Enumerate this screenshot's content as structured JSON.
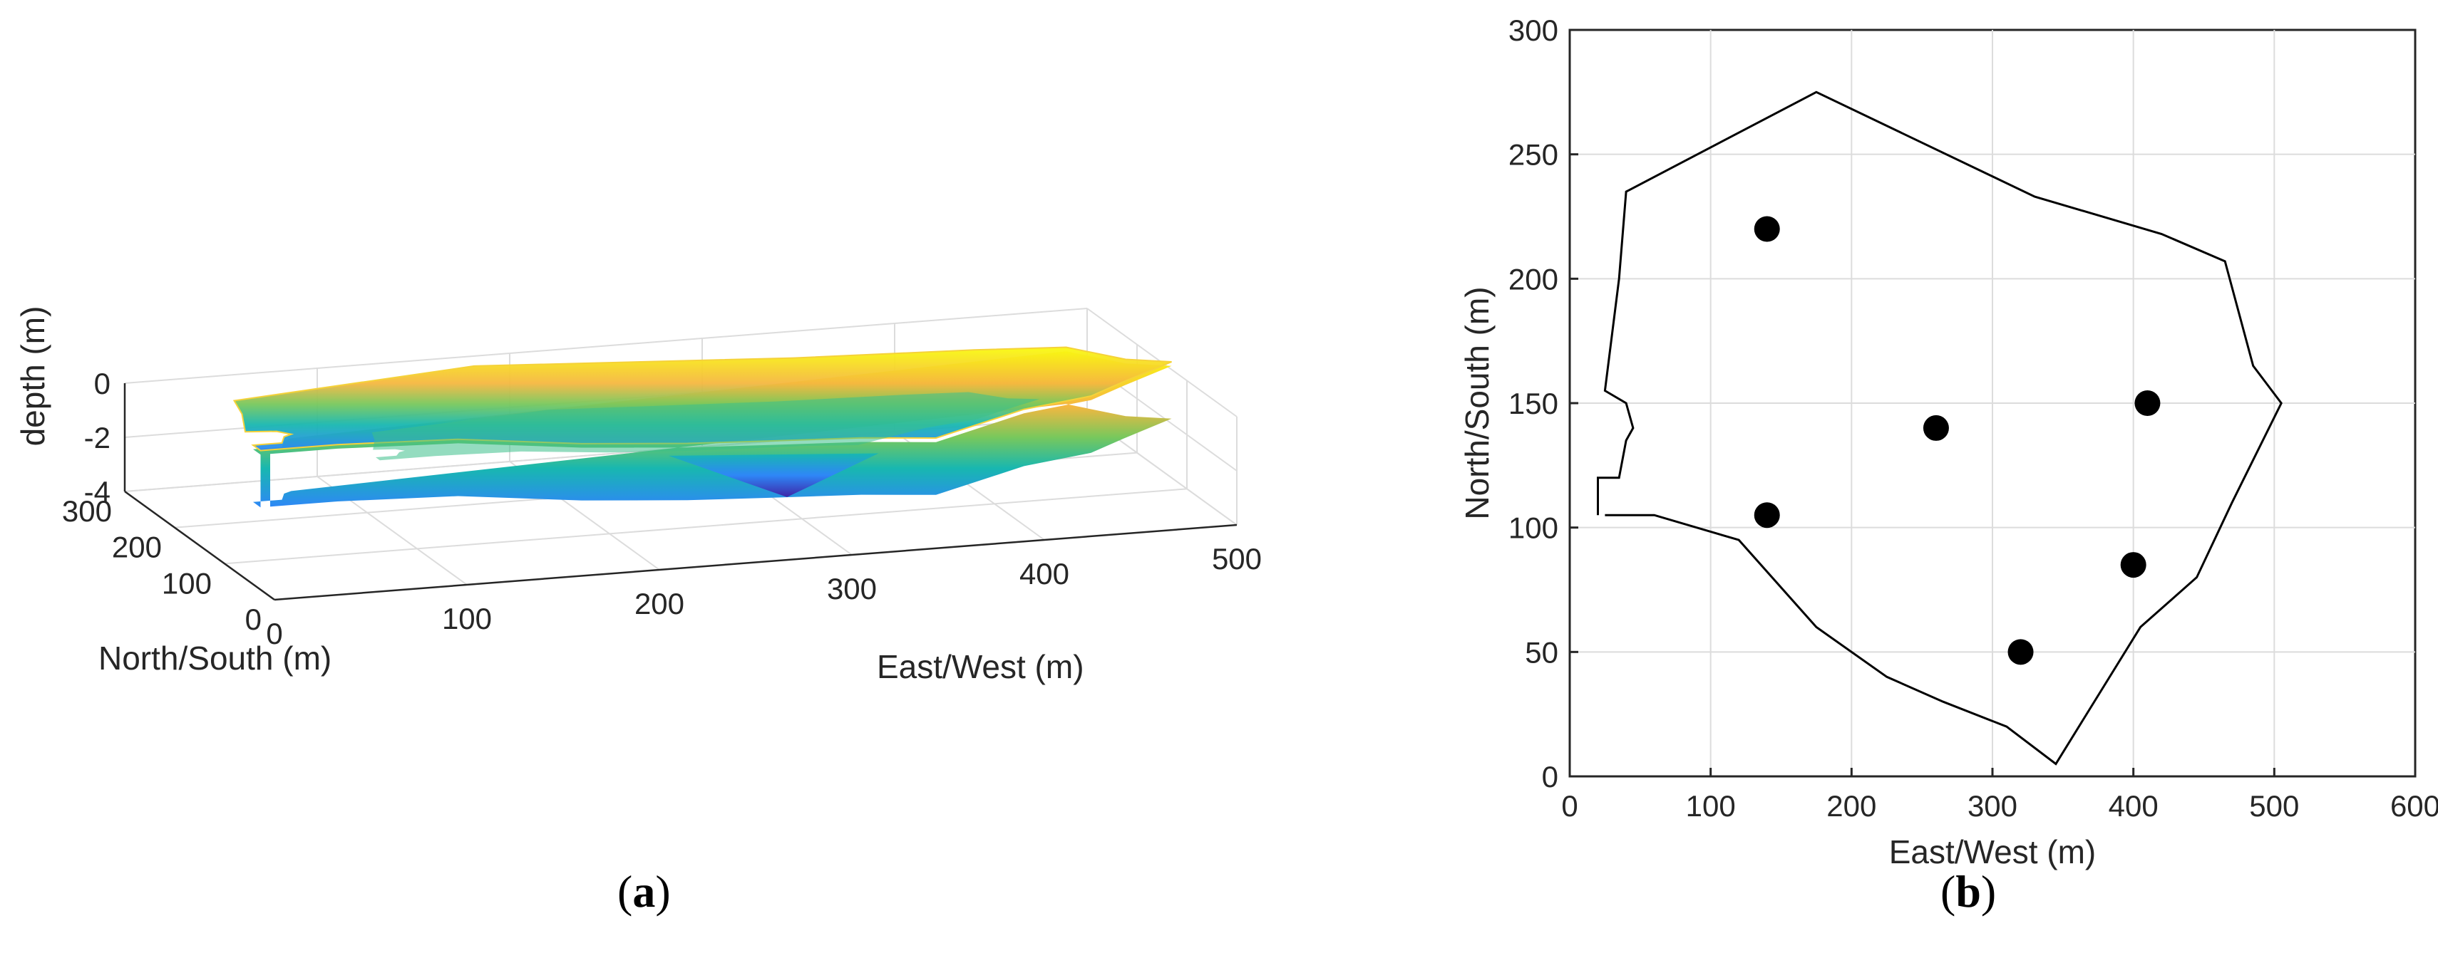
{
  "figure": {
    "panels": [
      {
        "letter": "a"
      },
      {
        "letter": "b"
      }
    ]
  },
  "chart_data": [
    {
      "panel": "a",
      "type": "surface",
      "view": "3d",
      "grid": true,
      "xlabel": "East/West (m)",
      "ylabel": "North/South (m)",
      "zlabel": "depth (m)",
      "xlim": [
        0,
        500
      ],
      "ylim": [
        0,
        300
      ],
      "zlim": [
        -4,
        0
      ],
      "xticks": [
        0,
        100,
        200,
        300,
        400,
        500
      ],
      "yticks": [
        0,
        100,
        200,
        300
      ],
      "zticks": [
        -4,
        -2,
        0
      ],
      "colormap": [
        "#3e26a8",
        "#2e87f7",
        "#18b7b0",
        "#78c85c",
        "#f5b740",
        "#f9fb0e"
      ],
      "rim": [
        [
          20,
          105
        ],
        [
          20,
          120
        ],
        [
          35,
          120
        ],
        [
          40,
          135
        ],
        [
          45,
          140
        ],
        [
          40,
          150
        ],
        [
          25,
          155
        ],
        [
          35,
          200
        ],
        [
          40,
          235
        ],
        [
          175,
          275
        ],
        [
          330,
          233
        ],
        [
          420,
          218
        ],
        [
          465,
          207
        ],
        [
          485,
          165
        ],
        [
          505,
          150
        ],
        [
          470,
          110
        ],
        [
          445,
          80
        ],
        [
          405,
          60
        ],
        [
          345,
          5
        ],
        [
          310,
          20
        ],
        [
          265,
          30
        ],
        [
          225,
          40
        ],
        [
          175,
          60
        ],
        [
          120,
          95
        ],
        [
          60,
          105
        ],
        [
          25,
          105
        ]
      ],
      "depth_samples": [
        {
          "x": 300,
          "y": 130,
          "depth": -3.6
        },
        {
          "x": 260,
          "y": 140,
          "depth": -3.0
        },
        {
          "x": 140,
          "y": 105,
          "depth": -2.6
        },
        {
          "x": 410,
          "y": 150,
          "depth": -2.4
        },
        {
          "x": 140,
          "y": 220,
          "depth": -2.0
        },
        {
          "x": 400,
          "y": 85,
          "depth": -2.2
        },
        {
          "x": 320,
          "y": 50,
          "depth": -2.0
        }
      ]
    },
    {
      "panel": "b",
      "type": "scatter",
      "grid": true,
      "xlabel": "East/West (m)",
      "ylabel": "North/South (m)",
      "xlim": [
        0,
        600
      ],
      "ylim": [
        0,
        300
      ],
      "xticks": [
        0,
        100,
        200,
        300,
        400,
        500,
        600
      ],
      "yticks": [
        0,
        50,
        100,
        150,
        200,
        250,
        300
      ],
      "boundary": [
        [
          20,
          105
        ],
        [
          20,
          120
        ],
        [
          35,
          120
        ],
        [
          40,
          135
        ],
        [
          45,
          140
        ],
        [
          40,
          150
        ],
        [
          25,
          155
        ],
        [
          35,
          200
        ],
        [
          40,
          235
        ],
        [
          175,
          275
        ],
        [
          330,
          233
        ],
        [
          420,
          218
        ],
        [
          465,
          207
        ],
        [
          485,
          165
        ],
        [
          505,
          150
        ],
        [
          470,
          110
        ],
        [
          445,
          80
        ],
        [
          405,
          60
        ],
        [
          345,
          5
        ],
        [
          310,
          20
        ],
        [
          265,
          30
        ],
        [
          225,
          40
        ],
        [
          175,
          60
        ],
        [
          120,
          95
        ],
        [
          60,
          105
        ],
        [
          25,
          105
        ]
      ],
      "points": [
        {
          "x": 140,
          "y": 220
        },
        {
          "x": 260,
          "y": 140
        },
        {
          "x": 410,
          "y": 150
        },
        {
          "x": 140,
          "y": 105
        },
        {
          "x": 400,
          "y": 85
        },
        {
          "x": 320,
          "y": 50
        }
      ]
    }
  ]
}
